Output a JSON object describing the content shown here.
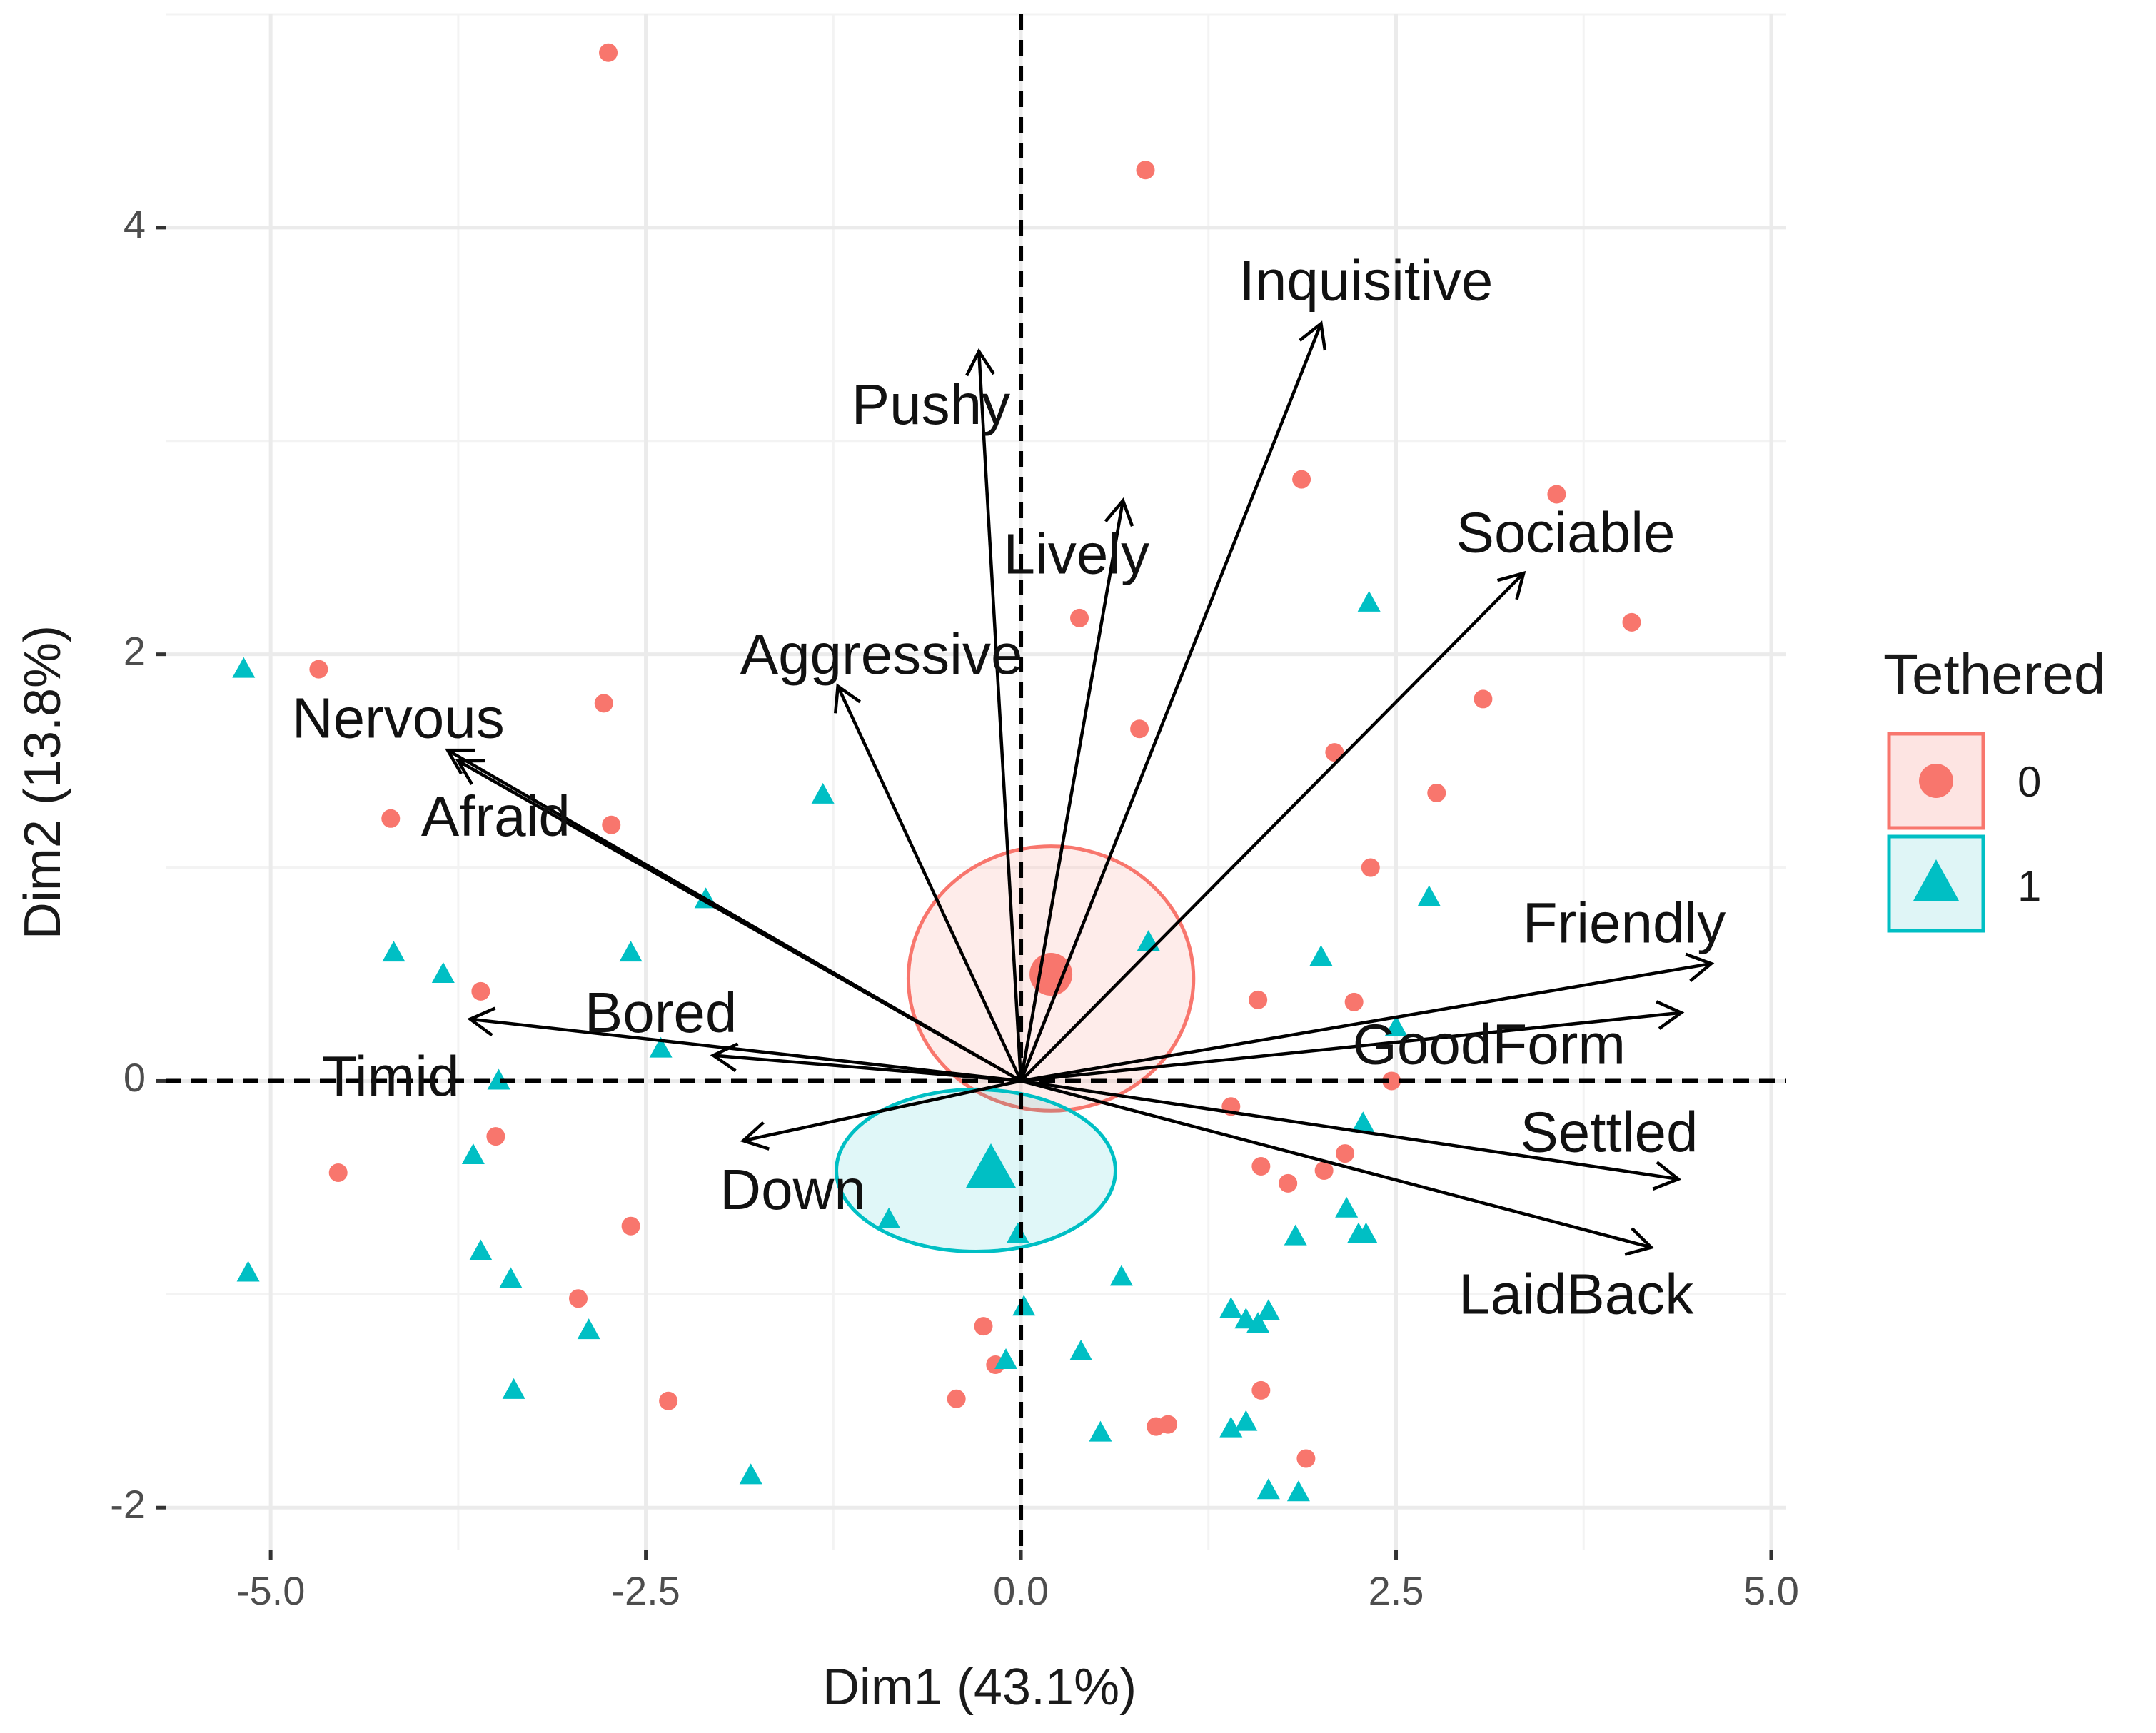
{
  "chart_data": {
    "type": "scatter",
    "subtype": "pca-biplot",
    "xlabel": "Dim1 (43.1%)",
    "ylabel": "Dim2 (13.8%)",
    "xlim": [
      -5.7,
      5.1
    ],
    "ylim": [
      -2.2,
      5.0
    ],
    "x_ticks": [
      -5.0,
      -2.5,
      0.0,
      2.5,
      5.0
    ],
    "x_tick_labels": [
      "-5.0",
      "-2.5",
      "0.0",
      "2.5",
      "5.0"
    ],
    "y_ticks": [
      -2,
      0,
      2,
      4
    ],
    "y_tick_labels": [
      "-2",
      "0",
      "2",
      "4"
    ],
    "grid": true,
    "legend": {
      "title": "Tethered",
      "position": "right",
      "entries": [
        {
          "label": "0",
          "shape": "circle",
          "color": "#F8766D"
        },
        {
          "label": "1",
          "shape": "triangle",
          "color": "#00BFC4"
        }
      ]
    },
    "colors": {
      "group0": "#F8766D",
      "group1": "#00BFC4",
      "arrow": "#000000"
    },
    "series": [
      {
        "name": "0",
        "shape": "circle",
        "color": "#F8766D",
        "points": [
          [
            -2.75,
            4.82
          ],
          [
            0.83,
            4.27
          ],
          [
            1.87,
            2.82
          ],
          [
            3.57,
            2.75
          ],
          [
            0.39,
            2.17
          ],
          [
            4.07,
            2.15
          ],
          [
            -4.68,
            1.93
          ],
          [
            3.08,
            1.79
          ],
          [
            -2.78,
            1.77
          ],
          [
            0.79,
            1.65
          ],
          [
            2.09,
            1.54
          ],
          [
            2.77,
            1.35
          ],
          [
            -4.2,
            1.23
          ],
          [
            -2.73,
            1.2
          ],
          [
            2.33,
            1.0
          ],
          [
            0.25,
            0.48
          ],
          [
            0.18,
            0.47
          ],
          [
            1.58,
            0.38
          ],
          [
            2.22,
            0.37
          ],
          [
            -3.6,
            0.42
          ],
          [
            2.47,
            0.0
          ],
          [
            1.4,
            -0.12
          ],
          [
            1.6,
            -0.4
          ],
          [
            1.78,
            -0.48
          ],
          [
            2.02,
            -0.42
          ],
          [
            2.16,
            -0.34
          ],
          [
            -3.5,
            -0.26
          ],
          [
            -4.55,
            -0.43
          ],
          [
            -2.6,
            -0.68
          ],
          [
            -2.95,
            -1.02
          ],
          [
            -0.25,
            -1.15
          ],
          [
            -0.17,
            -1.33
          ],
          [
            -2.35,
            -1.5
          ],
          [
            -0.43,
            -1.49
          ],
          [
            1.6,
            -1.45
          ],
          [
            0.9,
            -1.62
          ],
          [
            0.98,
            -1.61
          ],
          [
            1.9,
            -1.77
          ]
        ]
      },
      {
        "name": "1",
        "shape": "triangle",
        "color": "#00BFC4",
        "points": [
          [
            -5.18,
            1.93
          ],
          [
            2.32,
            2.24
          ],
          [
            -1.32,
            1.34
          ],
          [
            -4.18,
            0.6
          ],
          [
            -3.85,
            0.5
          ],
          [
            -2.6,
            0.6
          ],
          [
            -2.1,
            0.85
          ],
          [
            2.72,
            0.86
          ],
          [
            2.0,
            0.58
          ],
          [
            0.85,
            0.65
          ],
          [
            -2.4,
            0.15
          ],
          [
            2.5,
            0.25
          ],
          [
            -3.48,
            0.0
          ],
          [
            2.28,
            -0.2
          ],
          [
            -3.65,
            -0.35
          ],
          [
            -3.6,
            -0.8
          ],
          [
            -3.4,
            -0.93
          ],
          [
            -5.15,
            -0.9
          ],
          [
            -2.88,
            -1.17
          ],
          [
            -3.38,
            -1.45
          ],
          [
            -0.88,
            -0.65
          ],
          [
            -0.02,
            -0.72
          ],
          [
            1.83,
            -0.73
          ],
          [
            2.17,
            -0.6
          ],
          [
            2.3,
            -0.72
          ],
          [
            2.25,
            -0.72
          ],
          [
            0.67,
            -0.92
          ],
          [
            0.02,
            -1.06
          ],
          [
            1.4,
            -1.07
          ],
          [
            1.5,
            -1.12
          ],
          [
            1.58,
            -1.14
          ],
          [
            1.65,
            -1.08
          ],
          [
            0.4,
            -1.27
          ],
          [
            -0.1,
            -1.31
          ],
          [
            0.53,
            -1.65
          ],
          [
            1.4,
            -1.63
          ],
          [
            1.5,
            -1.6
          ],
          [
            -1.8,
            -1.85
          ],
          [
            1.65,
            -1.92
          ],
          [
            1.85,
            -1.93
          ]
        ]
      }
    ],
    "group_centers": [
      {
        "name": "0",
        "x": 0.2,
        "y": 0.5
      },
      {
        "name": "1",
        "x": -0.2,
        "y": -0.42
      }
    ],
    "confidence_ellipses": [
      {
        "name": "0",
        "cx": 0.2,
        "cy": 0.48,
        "rx": 0.95,
        "ry": 0.62
      },
      {
        "name": "1",
        "cx": -0.3,
        "cy": -0.42,
        "rx": 0.93,
        "ry": 0.38
      }
    ],
    "variables": [
      {
        "name": "Inquisitive",
        "x": 2.0,
        "y": 3.55
      },
      {
        "name": "Pushy",
        "x": -0.28,
        "y": 3.42
      },
      {
        "name": "Lively",
        "x": 0.68,
        "y": 2.72
      },
      {
        "name": "Sociable",
        "x": 3.35,
        "y": 2.38
      },
      {
        "name": "Aggressive",
        "x": -1.22,
        "y": 1.85
      },
      {
        "name": "Nervous",
        "x": -3.82,
        "y": 1.55
      },
      {
        "name": "Afraid",
        "x": -3.75,
        "y": 1.5
      },
      {
        "name": "Friendly",
        "x": 4.6,
        "y": 0.55
      },
      {
        "name": "GoodForm",
        "x": 4.4,
        "y": 0.32
      },
      {
        "name": "Bored",
        "x": -3.67,
        "y": 0.29
      },
      {
        "name": "Timid",
        "x": -2.05,
        "y": 0.12
      },
      {
        "name": "Settled",
        "x": 4.38,
        "y": -0.46
      },
      {
        "name": "LaidBack",
        "x": 4.2,
        "y": -0.78
      },
      {
        "name": "Down",
        "x": -1.85,
        "y": -0.28
      }
    ],
    "variable_label_positions": [
      {
        "name": "Inquisitive",
        "x": 2.3,
        "y": 3.73
      },
      {
        "name": "Pushy",
        "x": -0.6,
        "y": 3.15
      },
      {
        "name": "Lively",
        "x": 0.37,
        "y": 2.45
      },
      {
        "name": "Sociable",
        "x": 3.63,
        "y": 2.55
      },
      {
        "name": "Aggressive",
        "x": -0.93,
        "y": 1.98
      },
      {
        "name": "Nervous",
        "x": -4.15,
        "y": 1.68
      },
      {
        "name": "Afraid",
        "x": -3.5,
        "y": 1.22
      },
      {
        "name": "Friendly",
        "x": 4.02,
        "y": 0.72
      },
      {
        "name": "GoodForm",
        "x": 3.12,
        "y": 0.15
      },
      {
        "name": "Bored",
        "x": -2.4,
        "y": 0.3
      },
      {
        "name": "Timid",
        "x": -4.2,
        "y": 0.0
      },
      {
        "name": "Settled",
        "x": 3.92,
        "y": -0.26
      },
      {
        "name": "LaidBack",
        "x": 3.7,
        "y": -1.02
      },
      {
        "name": "Down",
        "x": -1.52,
        "y": -0.53
      }
    ]
  }
}
